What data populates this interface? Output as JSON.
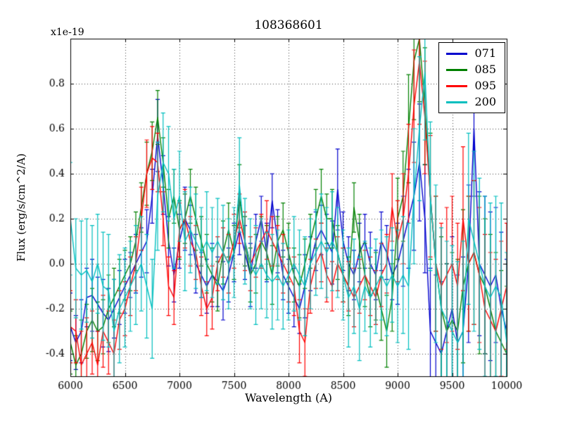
{
  "chart_data": {
    "type": "line",
    "title": "108368601",
    "xlabel": "Wavelength (A)",
    "ylabel": "Flux (erg/s/cm^2/A)",
    "y_offset_label": "x1e-19",
    "grid": true,
    "legend_position": "upper right",
    "xlim": [
      6000,
      10000
    ],
    "ylim": [
      -0.5,
      1.0
    ],
    "xticks": [
      6000,
      6500,
      7000,
      7500,
      8000,
      8500,
      9000,
      9500,
      10000
    ],
    "xtick_labels": [
      "6000",
      "6500",
      "7000",
      "7500",
      "8000",
      "8500",
      "9000",
      "9500",
      "10000"
    ],
    "yticks": [
      -0.4,
      -0.2,
      0.0,
      0.2,
      0.4,
      0.6,
      0.8
    ],
    "ytick_labels": [
      "-0.4",
      "-0.2",
      "0.0",
      "0.2",
      "0.4",
      "0.6",
      "0.8"
    ],
    "x": [
      6000,
      6050,
      6100,
      6150,
      6200,
      6250,
      6300,
      6350,
      6400,
      6450,
      6500,
      6550,
      6600,
      6650,
      6700,
      6750,
      6800,
      6850,
      6900,
      6950,
      7000,
      7050,
      7100,
      7150,
      7200,
      7250,
      7300,
      7350,
      7400,
      7450,
      7500,
      7550,
      7600,
      7650,
      7700,
      7750,
      7800,
      7850,
      7900,
      7950,
      8000,
      8050,
      8100,
      8150,
      8200,
      8250,
      8300,
      8350,
      8400,
      8450,
      8500,
      8550,
      8600,
      8650,
      8700,
      8750,
      8800,
      8850,
      8900,
      8950,
      9000,
      9050,
      9100,
      9150,
      9200,
      9250,
      9300,
      9350,
      9400,
      9450,
      9500,
      9550,
      9600,
      9650,
      9700,
      9750,
      9800,
      9850,
      9900,
      9950,
      10000
    ],
    "series": [
      {
        "name": "071",
        "color": "#0000cd",
        "values": [
          -0.28,
          -0.35,
          -0.3,
          -0.15,
          -0.14,
          -0.18,
          -0.22,
          -0.25,
          -0.2,
          -0.15,
          -0.1,
          -0.05,
          0.0,
          0.05,
          0.1,
          0.3,
          0.57,
          0.35,
          0.1,
          -0.05,
          0.1,
          0.2,
          0.15,
          0.0,
          -0.05,
          -0.1,
          -0.05,
          -0.08,
          -0.12,
          -0.05,
          0.05,
          0.15,
          0.05,
          -0.05,
          0.1,
          0.2,
          0.05,
          0.28,
          0.1,
          -0.05,
          -0.1,
          -0.15,
          -0.2,
          -0.1,
          0.0,
          0.1,
          0.15,
          0.1,
          0.05,
          0.33,
          0.1,
          0.0,
          -0.05,
          0.05,
          0.1,
          0.0,
          -0.05,
          0.1,
          0.05,
          -0.05,
          0.0,
          0.1,
          0.2,
          0.3,
          0.45,
          0.2,
          -0.3,
          -0.35,
          -0.4,
          -0.3,
          -0.2,
          -0.35,
          -0.3,
          0.0,
          0.6,
          0.0,
          -0.05,
          -0.1,
          -0.05,
          -0.2,
          -0.3
        ],
        "errors": [
          0.15,
          0.12,
          0.14,
          0.13,
          0.16,
          0.12,
          0.15,
          0.14,
          0.13,
          0.12,
          0.12,
          0.1,
          0.13,
          0.11,
          0.14,
          0.12,
          0.16,
          0.13,
          0.11,
          0.12,
          0.12,
          0.14,
          0.11,
          0.13,
          0.1,
          0.12,
          0.14,
          0.11,
          0.13,
          0.12,
          0.13,
          0.11,
          0.12,
          0.14,
          0.12,
          0.1,
          0.13,
          0.12,
          0.14,
          0.11,
          0.12,
          0.13,
          0.11,
          0.14,
          0.12,
          0.13,
          0.11,
          0.12,
          0.14,
          0.18,
          0.13,
          0.12,
          0.11,
          0.13,
          0.12,
          0.14,
          0.11,
          0.13,
          0.12,
          0.11,
          0.18,
          0.2,
          0.22,
          0.24,
          0.26,
          0.24,
          0.28,
          0.3,
          0.32,
          0.3,
          0.32,
          0.3,
          0.33,
          0.35,
          0.3,
          0.32,
          0.35,
          0.33,
          0.3,
          0.34,
          0.32
        ]
      },
      {
        "name": "085",
        "color": "#008000",
        "values": [
          -0.35,
          -0.45,
          -0.4,
          -0.3,
          -0.25,
          -0.3,
          -0.28,
          -0.2,
          -0.15,
          -0.1,
          -0.05,
          0.0,
          0.1,
          0.25,
          0.4,
          0.5,
          0.65,
          0.45,
          0.2,
          0.3,
          0.15,
          0.2,
          0.3,
          0.2,
          0.1,
          0.0,
          -0.05,
          -0.1,
          0.05,
          0.15,
          0.05,
          0.3,
          0.1,
          -0.05,
          0.0,
          0.1,
          0.05,
          -0.05,
          0.1,
          0.15,
          0.05,
          -0.05,
          -0.1,
          0.0,
          0.1,
          0.2,
          0.3,
          0.2,
          0.2,
          0.05,
          -0.05,
          -0.1,
          0.25,
          0.1,
          -0.05,
          -0.15,
          -0.1,
          -0.2,
          -0.3,
          -0.15,
          0.2,
          0.3,
          0.6,
          0.9,
          1.0,
          0.7,
          0.3,
          0.0,
          -0.2,
          -0.3,
          -0.25,
          -0.3,
          -0.1,
          0.0,
          0.05,
          -0.05,
          -0.1,
          -0.2,
          -0.3,
          -0.35,
          -0.4
        ],
        "errors": [
          0.14,
          0.13,
          0.15,
          0.12,
          0.14,
          0.13,
          0.12,
          0.15,
          0.13,
          0.12,
          0.11,
          0.12,
          0.13,
          0.11,
          0.14,
          0.13,
          0.12,
          0.11,
          0.13,
          0.12,
          0.13,
          0.11,
          0.12,
          0.14,
          0.11,
          0.13,
          0.12,
          0.11,
          0.14,
          0.12,
          0.12,
          0.14,
          0.11,
          0.12,
          0.13,
          0.11,
          0.12,
          0.13,
          0.11,
          0.12,
          0.13,
          0.12,
          0.14,
          0.11,
          0.12,
          0.13,
          0.12,
          0.11,
          0.13,
          0.12,
          0.12,
          0.13,
          0.11,
          0.12,
          0.14,
          0.13,
          0.15,
          0.14,
          0.16,
          0.15,
          0.18,
          0.2,
          0.24,
          0.26,
          0.28,
          0.26,
          0.28,
          0.3,
          0.32,
          0.3,
          0.3,
          0.32,
          0.34,
          0.3,
          0.32,
          0.35,
          0.3,
          0.33,
          0.35,
          0.32,
          0.3
        ]
      },
      {
        "name": "095",
        "color": "#ff0000",
        "values": [
          -0.28,
          -0.3,
          -0.45,
          -0.4,
          -0.35,
          -0.45,
          -0.3,
          -0.35,
          -0.4,
          -0.25,
          -0.2,
          -0.1,
          0.0,
          0.2,
          0.4,
          0.47,
          0.45,
          0.2,
          -0.1,
          -0.15,
          0.15,
          0.2,
          0.1,
          0.05,
          -0.1,
          -0.2,
          -0.15,
          0.0,
          0.05,
          0.0,
          0.1,
          0.2,
          0.1,
          0.0,
          0.05,
          0.1,
          0.15,
          0.1,
          0.05,
          0.0,
          -0.05,
          -0.1,
          -0.3,
          -0.35,
          -0.1,
          0.0,
          0.05,
          -0.05,
          -0.1,
          0.0,
          -0.05,
          -0.1,
          -0.15,
          -0.1,
          -0.05,
          -0.1,
          -0.15,
          -0.05,
          0.0,
          0.25,
          0.1,
          0.2,
          0.4,
          0.7,
          0.9,
          0.65,
          0.3,
          0.0,
          -0.1,
          -0.05,
          0.0,
          -0.1,
          0.2,
          0.0,
          0.05,
          -0.05,
          -0.2,
          -0.25,
          -0.3,
          -0.2,
          -0.1
        ],
        "errors": [
          0.16,
          0.14,
          0.15,
          0.16,
          0.14,
          0.15,
          0.16,
          0.14,
          0.15,
          0.13,
          0.12,
          0.13,
          0.12,
          0.14,
          0.15,
          0.14,
          0.13,
          0.12,
          0.13,
          0.12,
          0.12,
          0.13,
          0.11,
          0.12,
          0.13,
          0.12,
          0.14,
          0.12,
          0.11,
          0.13,
          0.12,
          0.11,
          0.13,
          0.12,
          0.11,
          0.12,
          0.13,
          0.11,
          0.12,
          0.13,
          0.12,
          0.13,
          0.14,
          0.15,
          0.12,
          0.11,
          0.13,
          0.12,
          0.11,
          0.12,
          0.12,
          0.11,
          0.13,
          0.12,
          0.11,
          0.13,
          0.12,
          0.14,
          0.13,
          0.15,
          0.18,
          0.2,
          0.22,
          0.25,
          0.28,
          0.25,
          0.27,
          0.3,
          0.28,
          0.3,
          0.3,
          0.28,
          0.32,
          0.3,
          0.32,
          0.3,
          0.33,
          0.3,
          0.32,
          0.3,
          0.28
        ]
      },
      {
        "name": "200",
        "color": "#00bfbf",
        "values": [
          0.2,
          -0.02,
          -0.05,
          -0.03,
          -0.08,
          0.0,
          -0.1,
          -0.12,
          -0.3,
          -0.2,
          -0.15,
          -0.1,
          -0.05,
          0.0,
          -0.1,
          -0.2,
          0.3,
          0.45,
          0.4,
          0.2,
          0.3,
          0.1,
          0.15,
          0.1,
          0.05,
          0.1,
          0.05,
          0.1,
          0.05,
          0.0,
          0.05,
          0.35,
          0.1,
          0.0,
          -0.05,
          0.0,
          -0.05,
          -0.08,
          -0.05,
          -0.1,
          -0.05,
          0.0,
          -0.05,
          -0.1,
          0.0,
          0.05,
          0.1,
          0.05,
          0.1,
          0.05,
          -0.05,
          -0.15,
          -0.1,
          -0.2,
          -0.1,
          -0.15,
          -0.1,
          -0.05,
          -0.1,
          -0.05,
          -0.1,
          -0.05,
          -0.1,
          0.3,
          0.6,
          0.85,
          0.3,
          0.0,
          -0.2,
          -0.25,
          -0.3,
          -0.35,
          -0.3,
          0.2,
          0.1,
          0.0,
          -0.1,
          -0.15,
          -0.1,
          -0.15,
          -0.35
        ],
        "errors": [
          0.25,
          0.22,
          0.24,
          0.23,
          0.25,
          0.22,
          0.24,
          0.25,
          0.23,
          0.24,
          0.22,
          0.2,
          0.22,
          0.21,
          0.23,
          0.22,
          0.24,
          0.22,
          0.21,
          0.22,
          0.2,
          0.22,
          0.19,
          0.21,
          0.2,
          0.22,
          0.2,
          0.19,
          0.21,
          0.2,
          0.2,
          0.21,
          0.19,
          0.2,
          0.22,
          0.2,
          0.19,
          0.21,
          0.2,
          0.19,
          0.2,
          0.21,
          0.2,
          0.22,
          0.2,
          0.19,
          0.21,
          0.2,
          0.22,
          0.2,
          0.2,
          0.22,
          0.21,
          0.23,
          0.2,
          0.22,
          0.21,
          0.2,
          0.22,
          0.21,
          0.25,
          0.26,
          0.28,
          0.3,
          0.32,
          0.3,
          0.33,
          0.35,
          0.36,
          0.35,
          0.38,
          0.36,
          0.4,
          0.38,
          0.4,
          0.38,
          0.4,
          0.42,
          0.4,
          0.42,
          0.4
        ]
      }
    ]
  }
}
